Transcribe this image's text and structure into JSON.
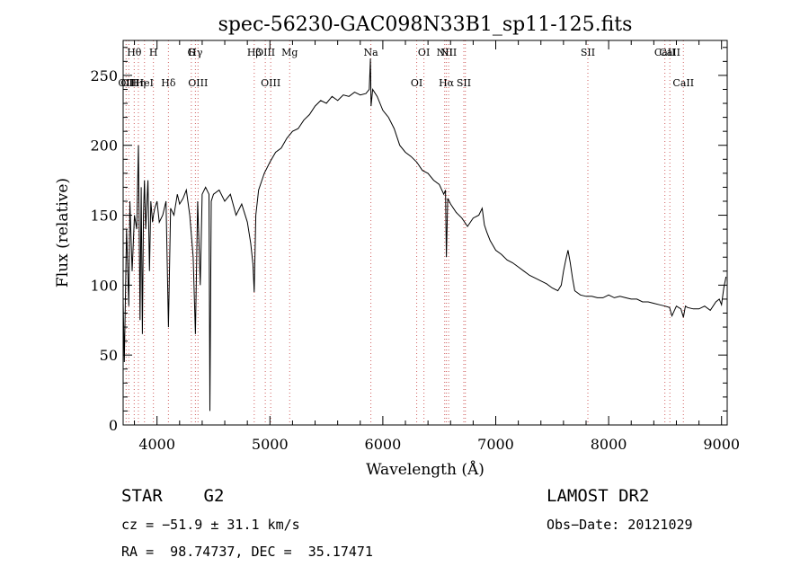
{
  "chart_data": {
    "type": "line",
    "title": "spec-56230-GAC098N33B1_sp11-125.fits",
    "xlabel": "Wavelength (Å)",
    "ylabel": "Flux (relative)",
    "xlim": [
      3700,
      9050
    ],
    "ylim": [
      0,
      275
    ],
    "xticks": [
      4000,
      5000,
      6000,
      7000,
      8000,
      9000
    ],
    "yticks": [
      0,
      50,
      100,
      150,
      200,
      250
    ],
    "grid": false,
    "series": [
      {
        "x": [
          3700,
          3710,
          3730,
          3750,
          3760,
          3780,
          3800,
          3820,
          3835,
          3850,
          3860,
          3870,
          3880,
          3889,
          3900,
          3920,
          3933,
          3945,
          3960,
          3968,
          3980,
          4000,
          4020,
          4050,
          4080,
          4101,
          4120,
          4150,
          4180,
          4200,
          4230,
          4260,
          4290,
          4320,
          4340,
          4360,
          4383,
          4400,
          4430,
          4460,
          4468,
          4480,
          4500,
          4550,
          4600,
          4650,
          4700,
          4750,
          4800,
          4830,
          4850,
          4861,
          4875,
          4900,
          4950,
          5000,
          5050,
          5100,
          5150,
          5200,
          5250,
          5300,
          5350,
          5400,
          5450,
          5500,
          5550,
          5600,
          5650,
          5700,
          5750,
          5800,
          5850,
          5880,
          5890,
          5896,
          5910,
          5950,
          6000,
          6050,
          6100,
          6150,
          6200,
          6250,
          6300,
          6350,
          6400,
          6450,
          6500,
          6540,
          6555,
          6563,
          6575,
          6600,
          6650,
          6700,
          6750,
          6800,
          6850,
          6880,
          6900,
          6920,
          6950,
          7000,
          7050,
          7100,
          7150,
          7200,
          7250,
          7300,
          7350,
          7400,
          7450,
          7500,
          7550,
          7580,
          7600,
          7620,
          7640,
          7660,
          7680,
          7700,
          7750,
          7800,
          7850,
          7900,
          7950,
          8000,
          8050,
          8100,
          8150,
          8200,
          8250,
          8300,
          8350,
          8400,
          8450,
          8500,
          8540,
          8560,
          8600,
          8640,
          8662,
          8680,
          8700,
          8750,
          8800,
          8850,
          8900,
          8950,
          8980,
          9000,
          9020,
          9040
        ],
        "y": [
          90,
          45,
          140,
          85,
          160,
          110,
          150,
          140,
          200,
          75,
          170,
          65,
          150,
          175,
          140,
          175,
          110,
          160,
          145,
          150,
          155,
          160,
          145,
          150,
          160,
          70,
          155,
          150,
          165,
          158,
          162,
          168,
          150,
          120,
          65,
          160,
          100,
          165,
          170,
          165,
          10,
          160,
          165,
          168,
          160,
          165,
          150,
          158,
          145,
          130,
          115,
          95,
          150,
          168,
          180,
          188,
          195,
          198,
          205,
          210,
          212,
          218,
          222,
          228,
          232,
          230,
          235,
          232,
          236,
          235,
          238,
          236,
          237,
          240,
          262,
          228,
          240,
          235,
          225,
          220,
          212,
          200,
          195,
          192,
          188,
          182,
          180,
          175,
          172,
          165,
          168,
          120,
          162,
          158,
          152,
          148,
          142,
          148,
          150,
          155,
          143,
          138,
          132,
          125,
          122,
          118,
          116,
          113,
          110,
          107,
          105,
          103,
          101,
          98,
          96,
          100,
          110,
          118,
          125,
          116,
          105,
          96,
          93,
          92,
          92,
          91,
          91,
          93,
          91,
          92,
          91,
          90,
          90,
          88,
          88,
          87,
          86,
          85,
          84,
          78,
          85,
          83,
          77,
          85,
          84,
          83,
          83,
          85,
          82,
          88,
          90,
          86,
          98,
          106
        ]
      }
    ],
    "lines": [
      {
        "wl": 3726,
        "upper": "",
        "lower": "OII"
      },
      {
        "wl": 3750,
        "upper": "",
        "lower": "OII"
      },
      {
        "wl": 3798,
        "upper": "Hθ",
        "lower": ""
      },
      {
        "wl": 3835,
        "upper": "",
        "lower": "Hη"
      },
      {
        "wl": 3889,
        "upper": "",
        "lower": "HeI"
      },
      {
        "wl": 3968,
        "upper": "H",
        "lower": ""
      },
      {
        "wl": 4101,
        "upper": "",
        "lower": "Hδ"
      },
      {
        "wl": 4304,
        "upper": "G",
        "lower": ""
      },
      {
        "wl": 4340,
        "upper": "Hγ",
        "lower": ""
      },
      {
        "wl": 4363,
        "upper": "",
        "lower": "OIII"
      },
      {
        "wl": 4861,
        "upper": "Hβ",
        "lower": ""
      },
      {
        "wl": 4959,
        "upper": "OIII",
        "lower": ""
      },
      {
        "wl": 5007,
        "upper": "",
        "lower": "OIII"
      },
      {
        "wl": 5175,
        "upper": "Mg",
        "lower": ""
      },
      {
        "wl": 5894,
        "upper": "Na",
        "lower": ""
      },
      {
        "wl": 6300,
        "upper": "",
        "lower": "OI"
      },
      {
        "wl": 6364,
        "upper": "OI",
        "lower": ""
      },
      {
        "wl": 6548,
        "upper": "NII",
        "lower": ""
      },
      {
        "wl": 6563,
        "upper": "",
        "lower": "Hα"
      },
      {
        "wl": 6583,
        "upper": "NII",
        "lower": ""
      },
      {
        "wl": 6717,
        "upper": "",
        "lower": "SII"
      },
      {
        "wl": 6731,
        "upper": "",
        "lower": ""
      },
      {
        "wl": 7816,
        "upper": "SII",
        "lower": ""
      },
      {
        "wl": 8498,
        "upper": "CaII",
        "lower": ""
      },
      {
        "wl": 8542,
        "upper": "CaII",
        "lower": ""
      },
      {
        "wl": 8662,
        "upper": "",
        "lower": "CaII"
      }
    ]
  },
  "info": {
    "object": "STAR    G2",
    "survey": "LAMOST DR2",
    "cz": "cz = −51.9 ± 31.1 km/s",
    "obs_date": "Obs−Date: 20121029",
    "coords": "RA =  98.74737, DEC =  35.17471"
  },
  "colors": {
    "line": "#000000",
    "marker": "#d06060"
  }
}
